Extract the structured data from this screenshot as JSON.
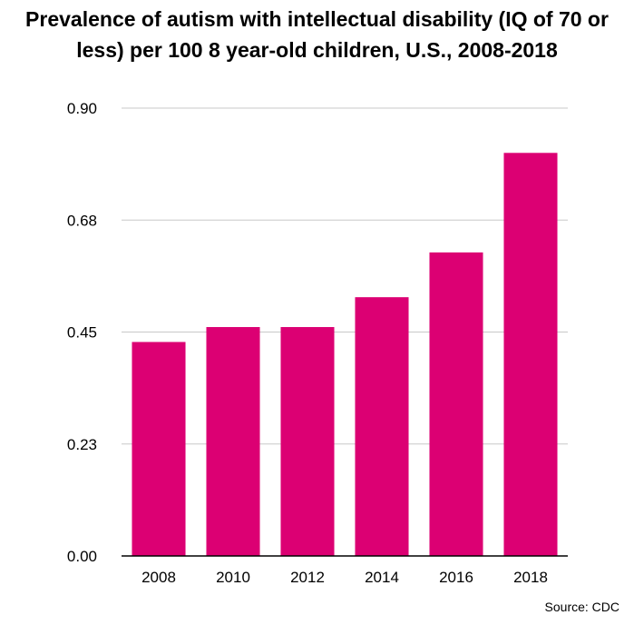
{
  "colors": {
    "bar": "#dc0073",
    "grid": "#c8c8c8",
    "axis": "#000000",
    "background": "#ffffff"
  },
  "chart_data": {
    "type": "bar",
    "title": "Prevalence of autism with intellectual disability (IQ of 70 or less) per 100 8 year-old children, U.S., 2008-2018",
    "xlabel": "",
    "ylabel": "",
    "categories": [
      "2008",
      "2010",
      "2012",
      "2014",
      "2016",
      "2018"
    ],
    "values": [
      0.43,
      0.46,
      0.46,
      0.52,
      0.61,
      0.81
    ],
    "yticks": [
      0,
      0.225,
      0.45,
      0.675,
      0.9
    ],
    "ytick_labels": [
      "0.00",
      "0.23",
      "0.45",
      "0.68",
      "0.90"
    ],
    "ylim": [
      0,
      0.9
    ],
    "grid": true,
    "legend": "none",
    "source": "Source: CDC"
  }
}
